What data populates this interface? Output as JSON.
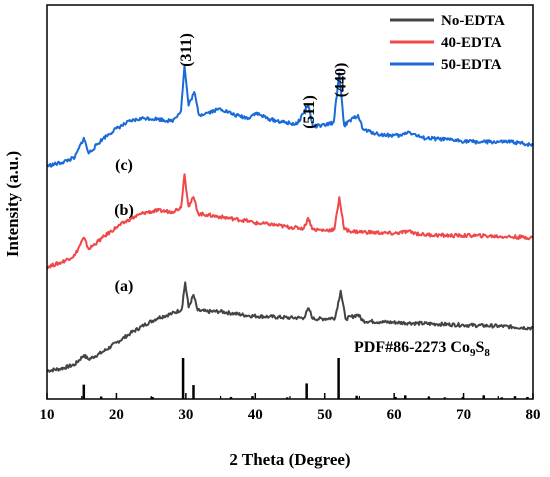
{
  "chart_data": {
    "type": "line",
    "xlabel": "2 Theta (Degree)",
    "ylabel": "Intensity (a.u.)",
    "xlim": [
      10,
      80
    ],
    "x_ticks": [
      10,
      20,
      30,
      40,
      50,
      60,
      70,
      80
    ],
    "y_ticks_shown": false,
    "grid": false,
    "legend_position": "top-right",
    "series": [
      {
        "name": "No-EDTA",
        "label": "(a)",
        "color": "#444444",
        "points": [
          [
            10,
            0.05
          ],
          [
            12,
            0.07
          ],
          [
            14,
            0.11
          ],
          [
            15.3,
            0.2
          ],
          [
            16,
            0.16
          ],
          [
            18,
            0.23
          ],
          [
            20,
            0.32
          ],
          [
            22,
            0.41
          ],
          [
            24,
            0.49
          ],
          [
            26,
            0.56
          ],
          [
            28,
            0.6
          ],
          [
            29.4,
            0.64
          ],
          [
            29.9,
            0.9
          ],
          [
            30.4,
            0.66
          ],
          [
            31.1,
            0.78
          ],
          [
            31.7,
            0.63
          ],
          [
            33,
            0.62
          ],
          [
            35,
            0.62
          ],
          [
            37,
            0.6
          ],
          [
            39,
            0.58
          ],
          [
            42,
            0.57
          ],
          [
            45,
            0.56
          ],
          [
            47,
            0.56
          ],
          [
            47.7,
            0.65
          ],
          [
            48.3,
            0.55
          ],
          [
            50,
            0.55
          ],
          [
            51.5,
            0.56
          ],
          [
            52.3,
            0.82
          ],
          [
            53,
            0.55
          ],
          [
            54.8,
            0.59
          ],
          [
            55.5,
            0.53
          ],
          [
            58,
            0.52
          ],
          [
            62,
            0.51
          ],
          [
            66,
            0.5
          ],
          [
            70,
            0.49
          ],
          [
            75,
            0.48
          ],
          [
            80,
            0.46
          ]
        ]
      },
      {
        "name": "40-EDTA",
        "label": "(b)",
        "color": "#f04848",
        "points": [
          [
            10,
            1.05
          ],
          [
            12,
            1.09
          ],
          [
            14,
            1.16
          ],
          [
            15.3,
            1.33
          ],
          [
            16,
            1.22
          ],
          [
            18,
            1.33
          ],
          [
            20,
            1.43
          ],
          [
            22,
            1.51
          ],
          [
            24,
            1.57
          ],
          [
            26,
            1.59
          ],
          [
            28,
            1.58
          ],
          [
            29.3,
            1.62
          ],
          [
            29.8,
            1.94
          ],
          [
            30.4,
            1.63
          ],
          [
            31.1,
            1.72
          ],
          [
            31.8,
            1.56
          ],
          [
            33,
            1.55
          ],
          [
            35,
            1.53
          ],
          [
            37,
            1.51
          ],
          [
            39,
            1.49
          ],
          [
            40,
            1.47
          ],
          [
            42,
            1.46
          ],
          [
            45,
            1.43
          ],
          [
            47,
            1.42
          ],
          [
            47.6,
            1.52
          ],
          [
            48.3,
            1.41
          ],
          [
            50,
            1.4
          ],
          [
            51.4,
            1.41
          ],
          [
            52.1,
            1.72
          ],
          [
            52.8,
            1.41
          ],
          [
            54,
            1.39
          ],
          [
            57,
            1.38
          ],
          [
            60,
            1.37
          ],
          [
            62,
            1.39
          ],
          [
            64,
            1.36
          ],
          [
            68,
            1.35
          ],
          [
            72,
            1.35
          ],
          [
            76,
            1.34
          ],
          [
            80,
            1.33
          ]
        ]
      },
      {
        "name": "50-EDTA",
        "label": "(c)",
        "color": "#1a6ad8",
        "points": [
          [
            10,
            2.02
          ],
          [
            12,
            2.05
          ],
          [
            14,
            2.1
          ],
          [
            15.3,
            2.29
          ],
          [
            16,
            2.14
          ],
          [
            18,
            2.28
          ],
          [
            20,
            2.38
          ],
          [
            22,
            2.45
          ],
          [
            24,
            2.48
          ],
          [
            26,
            2.47
          ],
          [
            28,
            2.45
          ],
          [
            29.3,
            2.55
          ],
          [
            29.8,
            2.98
          ],
          [
            30.4,
            2.6
          ],
          [
            31.2,
            2.73
          ],
          [
            31.9,
            2.51
          ],
          [
            33,
            2.53
          ],
          [
            35,
            2.57
          ],
          [
            37,
            2.51
          ],
          [
            39,
            2.48
          ],
          [
            40,
            2.53
          ],
          [
            42,
            2.47
          ],
          [
            44,
            2.44
          ],
          [
            46,
            2.42
          ],
          [
            47.6,
            2.61
          ],
          [
            48.3,
            2.4
          ],
          [
            50,
            2.41
          ],
          [
            51.3,
            2.44
          ],
          [
            52.1,
            2.91
          ],
          [
            52.8,
            2.41
          ],
          [
            54.8,
            2.51
          ],
          [
            55.5,
            2.37
          ],
          [
            58,
            2.32
          ],
          [
            61,
            2.31
          ],
          [
            62,
            2.35
          ],
          [
            64,
            2.29
          ],
          [
            68,
            2.27
          ],
          [
            72,
            2.25
          ],
          [
            77,
            2.25
          ],
          [
            80,
            2.22
          ]
        ]
      }
    ],
    "reference": {
      "label": "PDF#86-2273 Co",
      "formula_sub1": "9",
      "formula_mid": "S",
      "formula_sub2": "8",
      "lines": [
        [
          15.3,
          0.35
        ],
        [
          17.8,
          0.06
        ],
        [
          25.2,
          0.05
        ],
        [
          29.6,
          1.0
        ],
        [
          31.1,
          0.34
        ],
        [
          36.5,
          0.05
        ],
        [
          39.6,
          0.07
        ],
        [
          44.6,
          0.04
        ],
        [
          47.4,
          0.38
        ],
        [
          52.0,
          1.0
        ],
        [
          54.6,
          0.08
        ],
        [
          60.2,
          0.05
        ],
        [
          61.6,
          0.09
        ],
        [
          65.0,
          0.05
        ],
        [
          67.3,
          0.04
        ],
        [
          69.9,
          0.05
        ],
        [
          72.9,
          0.09
        ],
        [
          75.5,
          0.04
        ],
        [
          77.4,
          0.07
        ],
        [
          79.2,
          0.05
        ]
      ]
    },
    "peak_annotations": [
      {
        "text": "(311)",
        "x": 29.9
      },
      {
        "text": "(511)",
        "x": 47.6
      },
      {
        "text": "(440)",
        "x": 52.1
      }
    ]
  }
}
